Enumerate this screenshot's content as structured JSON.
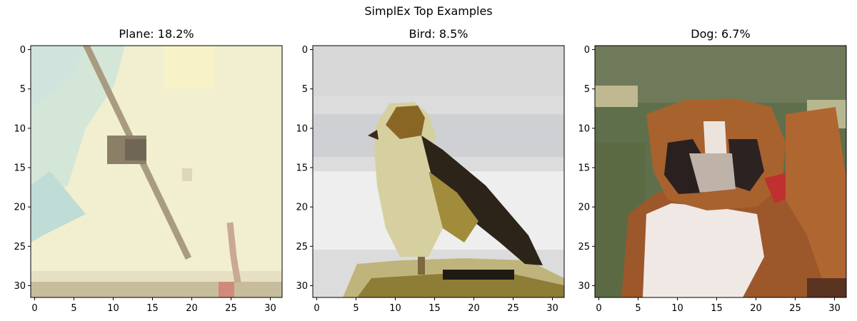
{
  "figure": {
    "suptitle": "SimplEx Top Examples"
  },
  "chart_data": [
    {
      "type": "image",
      "title": "Plane: 18.2%",
      "label": "Plane",
      "weight_percent": 18.2,
      "xlim": [
        -0.5,
        31.5
      ],
      "ylim": [
        31.5,
        -0.5
      ],
      "xticks": [
        0,
        5,
        10,
        15,
        20,
        25,
        30
      ],
      "yticks": [
        0,
        5,
        10,
        15,
        20,
        25,
        30
      ],
      "grid": false,
      "image_size": [
        32,
        32
      ],
      "dominant_colors": [
        "#f3efcf",
        "#cfe3d8",
        "#a89b80",
        "#c89480"
      ]
    },
    {
      "type": "image",
      "title": "Bird: 8.5%",
      "label": "Bird",
      "weight_percent": 8.5,
      "xlim": [
        -0.5,
        31.5
      ],
      "ylim": [
        31.5,
        -0.5
      ],
      "xticks": [
        0,
        5,
        10,
        15,
        20,
        25,
        30
      ],
      "yticks": [
        0,
        5,
        10,
        15,
        20,
        25,
        30
      ],
      "grid": false,
      "image_size": [
        32,
        32
      ],
      "dominant_colors": [
        "#e0e0e0",
        "#c9c89a",
        "#8a6a28",
        "#2a2218",
        "#a8943a"
      ]
    },
    {
      "type": "image",
      "title": "Dog: 6.7%",
      "label": "Dog",
      "weight_percent": 6.7,
      "xlim": [
        -0.5,
        31.5
      ],
      "ylim": [
        31.5,
        -0.5
      ],
      "xticks": [
        0,
        5,
        10,
        15,
        20,
        25,
        30
      ],
      "yticks": [
        0,
        5,
        10,
        15,
        20,
        25,
        30
      ],
      "grid": false,
      "image_size": [
        32,
        32
      ],
      "dominant_colors": [
        "#5f7048",
        "#a8602e",
        "#f0e8e4",
        "#2a2020",
        "#c03030"
      ]
    }
  ]
}
